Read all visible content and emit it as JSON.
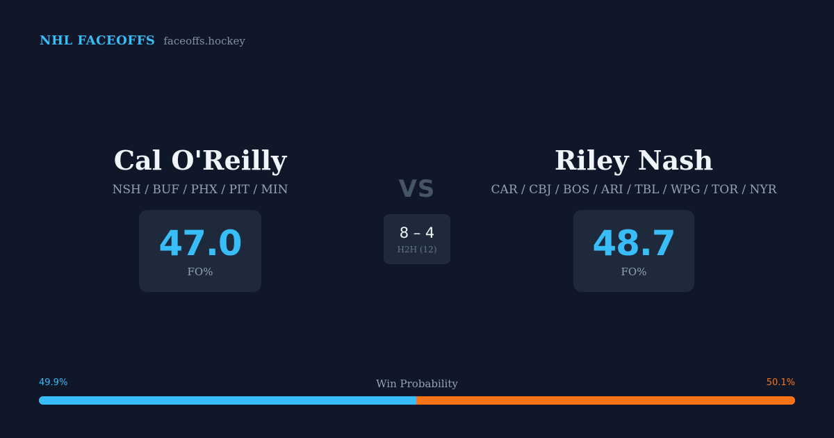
{
  "brand": {
    "name": "NHL FACEOFFS",
    "site": "faceoffs.hockey"
  },
  "player_left": {
    "name": "Cal O'Reilly",
    "teams": "NSH / BUF / PHX / PIT / MIN",
    "fo_value": "47.0",
    "fo_label": "FO%"
  },
  "player_right": {
    "name": "Riley Nash",
    "teams": "CAR / CBJ / BOS / ARI / TBL / WPG / TOR / NYR",
    "fo_value": "48.7",
    "fo_label": "FO%"
  },
  "matchup": {
    "vs": "VS",
    "h2h_score": "8 – 4",
    "h2h_label": "H2H (12)"
  },
  "win_probability": {
    "title": "Win Probability",
    "left_label": "49.9%",
    "right_label": "50.1%",
    "left_fraction": 0.499,
    "left_color": "#38bdf8",
    "right_color": "#f97316"
  }
}
